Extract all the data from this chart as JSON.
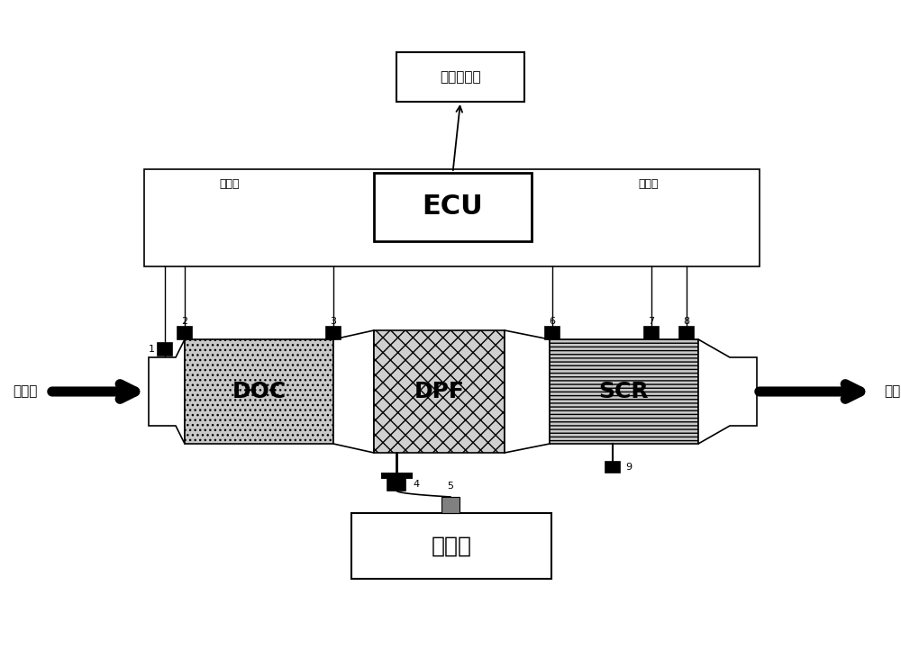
{
  "bg_color": "#ffffff",
  "ecu_label": "ECU",
  "fault_label": "故障指示灯",
  "signal_left": "电信号",
  "signal_right": "电信号",
  "exhaust_in": "排气进",
  "exhaust_out": "排气出",
  "urea_label": "尿素笩",
  "doc_label": "DOC",
  "dpf_label": "DPF",
  "scr_label": "SCR",
  "fig_width": 10.0,
  "fig_height": 7.21,
  "dpi": 100
}
